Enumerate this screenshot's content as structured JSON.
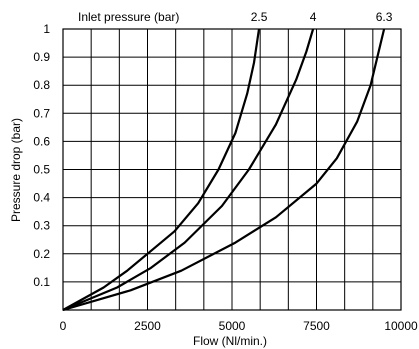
{
  "chart_data": {
    "type": "line",
    "title": "Inlet pressure  (bar)",
    "xlabel": "Flow  (Nl/min.)",
    "ylabel": "Pressure drop (bar)",
    "xlim": [
      0,
      10000
    ],
    "ylim": [
      0,
      1
    ],
    "x_ticks": [
      "0",
      "2500",
      "5000",
      "7500",
      "10000"
    ],
    "y_ticks": [
      "0.1",
      "0.2",
      "0.3",
      "0.4",
      "0.5",
      "0.6",
      "0.7",
      "0.8",
      "0.9",
      "1"
    ],
    "grid": true,
    "series": [
      {
        "name": "2.5",
        "x": [
          0,
          1200,
          1900,
          2500,
          3300,
          4000,
          4600,
          5100,
          5450,
          5650,
          5800
        ],
        "y": [
          0,
          0.08,
          0.14,
          0.2,
          0.28,
          0.38,
          0.5,
          0.63,
          0.77,
          0.88,
          1.0
        ]
      },
      {
        "name": "4",
        "x": [
          0,
          1600,
          2600,
          3600,
          4700,
          5500,
          6300,
          6900,
          7200,
          7400
        ],
        "y": [
          0,
          0.08,
          0.15,
          0.24,
          0.37,
          0.5,
          0.66,
          0.82,
          0.92,
          1.0
        ]
      },
      {
        "name": "6.3",
        "x": [
          0,
          2000,
          3500,
          5100,
          6300,
          7500,
          8100,
          8700,
          9100,
          9500
        ],
        "y": [
          0,
          0.07,
          0.14,
          0.24,
          0.33,
          0.45,
          0.54,
          0.67,
          0.8,
          1.0
        ]
      }
    ]
  }
}
